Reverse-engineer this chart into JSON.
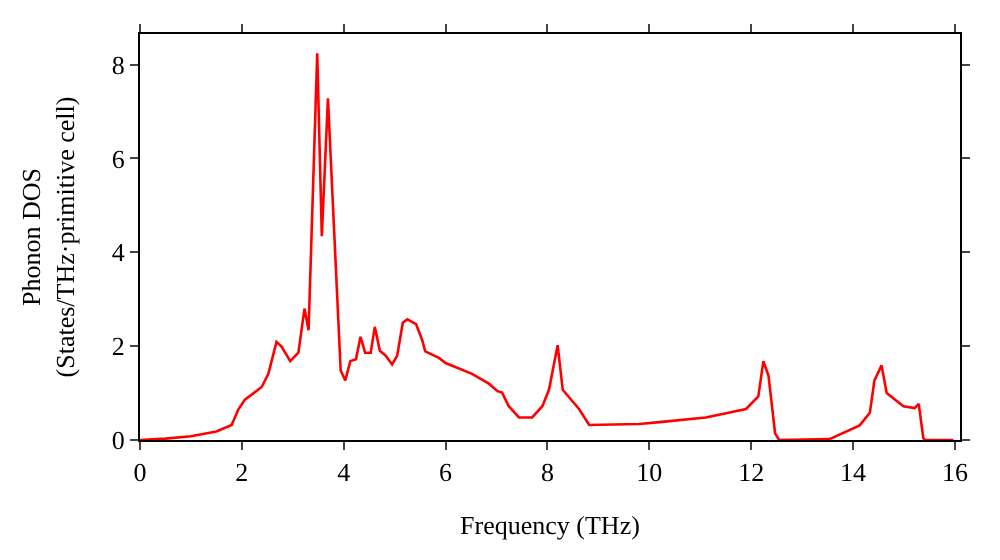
{
  "chart_data": {
    "type": "line",
    "xlabel": "Frequency (THz)",
    "ylabel": "Phonon DOS\n(States/THz·primitive cell)",
    "series": [
      {
        "color": "#ff0000",
        "x": [
          0,
          0.5,
          1.0,
          1.5,
          1.8,
          1.93,
          2.06,
          2.39,
          2.52,
          2.68,
          2.78,
          2.95,
          3.11,
          3.23,
          3.31,
          3.48,
          3.57,
          3.69,
          3.94,
          4.03,
          4.13,
          4.24,
          4.33,
          4.42,
          4.53,
          4.61,
          4.71,
          4.82,
          4.95,
          5.05,
          5.16,
          5.25,
          5.42,
          5.54,
          5.6,
          5.87,
          6.0,
          6.52,
          6.85,
          7.02,
          7.11,
          7.24,
          7.44,
          7.7,
          7.9,
          8.03,
          8.2,
          8.3,
          8.62,
          8.82,
          9.8,
          10.2,
          11.11,
          11.9,
          12.14,
          12.24,
          12.34,
          12.47,
          12.55,
          13.54,
          14.13,
          14.33,
          14.42,
          14.56,
          14.66,
          14.99,
          15.21,
          15.29,
          15.38,
          15.42,
          15.97
        ],
        "values": [
          0,
          0.03,
          0.08,
          0.18,
          0.32,
          0.65,
          0.86,
          1.13,
          1.41,
          2.09,
          1.99,
          1.68,
          1.86,
          2.8,
          2.34,
          8.24,
          4.34,
          7.28,
          1.48,
          1.27,
          1.68,
          1.72,
          2.2,
          1.86,
          1.86,
          2.41,
          1.9,
          1.8,
          1.61,
          1.8,
          2.5,
          2.57,
          2.47,
          2.13,
          1.89,
          1.75,
          1.64,
          1.41,
          1.2,
          1.04,
          1.01,
          0.72,
          0.48,
          0.48,
          0.72,
          1.07,
          2.02,
          1.07,
          0.66,
          0.32,
          0.34,
          0.38,
          0.48,
          0.66,
          0.93,
          1.68,
          1.37,
          0.14,
          0,
          0.02,
          0.31,
          0.58,
          1.27,
          1.59,
          1.0,
          0.72,
          0.68,
          0.77,
          0.04,
          0,
          0
        ]
      }
    ],
    "xlim": [
      0,
      16.1
    ],
    "xticks": [
      0,
      2,
      4,
      6,
      8,
      10,
      12,
      14,
      16
    ],
    "ylim": [
      0,
      8.65
    ],
    "yticks": [
      0,
      2,
      4,
      6,
      8
    ],
    "marker": "none",
    "line_style": "solid"
  }
}
